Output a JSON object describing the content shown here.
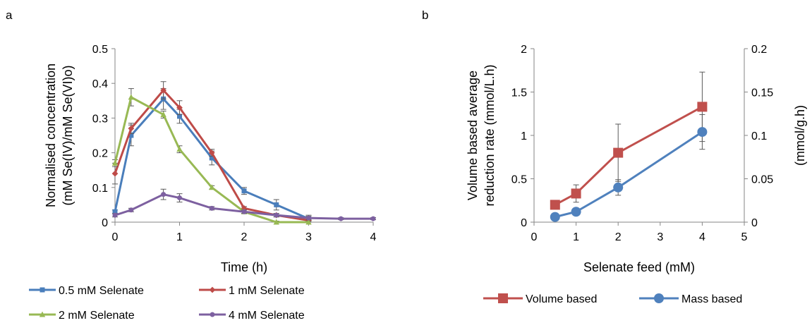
{
  "chart_data": [
    {
      "type": "line",
      "panel_label": "a",
      "xlabel": "Time (h)",
      "ylabel_lines": [
        "Normalised concentration",
        "(mM Se(IV)/mM Se(VI)o)"
      ],
      "xlim": [
        0,
        4
      ],
      "ylim": [
        0,
        0.5
      ],
      "xticks": [
        0,
        1,
        2,
        3,
        4
      ],
      "yticks": [
        0,
        0.1,
        0.2,
        0.3,
        0.4,
        0.5
      ],
      "ytick_labels": [
        "0",
        "0.1",
        "0.2",
        "0.3",
        "0.4",
        "0.5"
      ],
      "grid": false,
      "legend_position": "bottom",
      "series": [
        {
          "name": "0.5 mM Selenate",
          "color": "#4a7ebb",
          "marker": "square",
          "x": [
            0,
            0.25,
            0.75,
            1,
            1.5,
            2,
            2.5,
            3
          ],
          "y": [
            0.03,
            0.25,
            0.355,
            0.305,
            0.185,
            0.09,
            0.05,
            0.01
          ],
          "err": [
            0.005,
            0.03,
            0.03,
            0.02,
            0.02,
            0.01,
            0.015,
            0.01
          ]
        },
        {
          "name": "1 mM Selenate",
          "color": "#be4b48",
          "marker": "diamond",
          "x": [
            0,
            0.25,
            0.75,
            1,
            1.5,
            2,
            2.5,
            3
          ],
          "y": [
            0.14,
            0.27,
            0.38,
            0.33,
            0.2,
            0.04,
            0.02,
            0.005
          ],
          "err": [
            0.03,
            0.015,
            0.025,
            0.02,
            0.01,
            0.005,
            0.005,
            0.005
          ]
        },
        {
          "name": "2 mM Selenate",
          "color": "#98b954",
          "marker": "triangle",
          "x": [
            0,
            0.25,
            0.75,
            1,
            1.5,
            2,
            2.5,
            3
          ],
          "y": [
            0.17,
            0.36,
            0.31,
            0.21,
            0.1,
            0.03,
            0.0,
            0.0
          ],
          "err": [
            0.01,
            0.025,
            0.01,
            0.01,
            0.005,
            0.005,
            0.003,
            0.003
          ]
        },
        {
          "name": "4 mM Selenate",
          "color": "#7d60a0",
          "marker": "circle",
          "x": [
            0,
            0.25,
            0.75,
            1,
            1.5,
            2,
            2.5,
            3,
            3.5,
            4
          ],
          "y": [
            0.02,
            0.035,
            0.08,
            0.07,
            0.04,
            0.03,
            0.02,
            0.012,
            0.01,
            0.01
          ],
          "err": [
            0.005,
            0.005,
            0.015,
            0.012,
            0.005,
            0.005,
            0.005,
            0.005,
            0.003,
            0.003
          ]
        }
      ]
    },
    {
      "type": "line",
      "panel_label": "b",
      "xlabel": "Selenate feed (mM)",
      "ylabel_lines": [
        "Volume based average",
        "reduction rate (mmol/L.h)"
      ],
      "y2label": "(mmol/g.h)",
      "xlim": [
        0,
        5
      ],
      "ylim": [
        0,
        2
      ],
      "y2lim": [
        0,
        0.2
      ],
      "xticks": [
        0,
        1,
        2,
        3,
        4,
        5
      ],
      "yticks": [
        0,
        0.5,
        1,
        1.5,
        2
      ],
      "ytick_labels": [
        "0",
        "0.5",
        "1",
        "1.5",
        "2"
      ],
      "y2ticks": [
        0,
        0.05,
        0.1,
        0.15,
        0.2
      ],
      "y2tick_labels": [
        "0",
        "0.05",
        "0.1",
        "0.15",
        "0.2"
      ],
      "grid": false,
      "legend_position": "bottom",
      "series": [
        {
          "name": "Volume based",
          "color": "#c0504d",
          "marker": "square",
          "axis": "left",
          "x": [
            0.5,
            1,
            2,
            4
          ],
          "y": [
            0.2,
            0.33,
            0.8,
            1.33
          ],
          "err": [
            0.02,
            0.1,
            0.33,
            0.4
          ]
        },
        {
          "name": "Mass based",
          "color": "#4f81bd",
          "marker": "circle",
          "axis": "right",
          "x": [
            0.5,
            1,
            2,
            4
          ],
          "y": [
            0.006,
            0.012,
            0.04,
            0.104
          ],
          "err": [
            0.001,
            0.002,
            0.009,
            0.02
          ]
        }
      ]
    }
  ]
}
